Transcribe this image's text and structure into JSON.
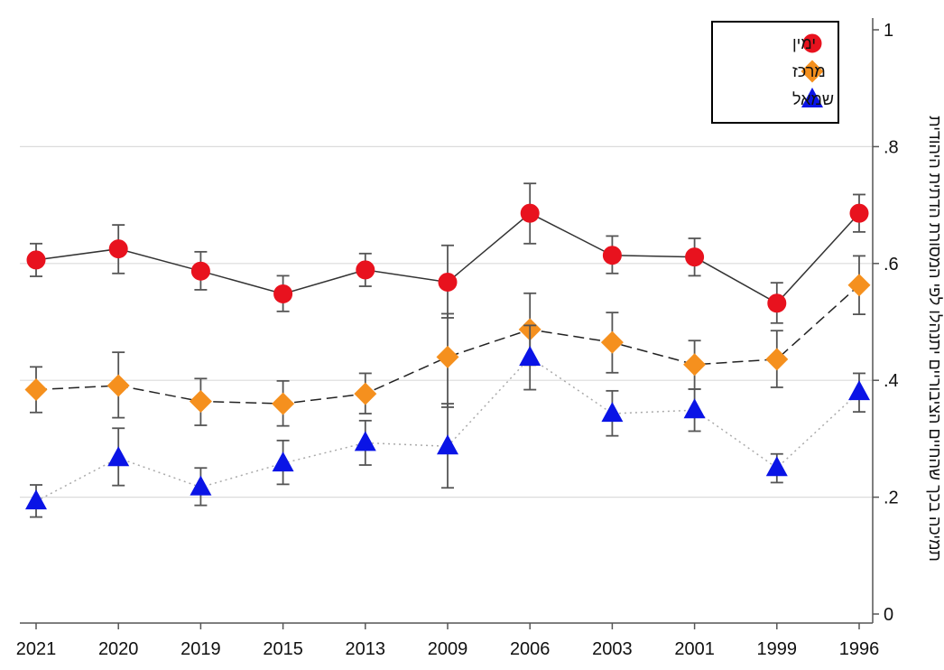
{
  "chart_data": {
    "type": "line",
    "categories": [
      "2021",
      "2020",
      "2019",
      "2015",
      "2013",
      "2009",
      "2006",
      "2003",
      "2001",
      "1999",
      "1996"
    ],
    "ylabel": "תמיכה בכך שהחיים הציבוריים יתנהלו לפי המסורת הדתית היהודית",
    "ylim": [
      0,
      1
    ],
    "yticks": [
      0,
      0.2,
      0.4,
      0.6,
      0.8,
      1
    ],
    "ytick_labels": [
      "0",
      ".2",
      ".4",
      ".6",
      ".8",
      "1"
    ],
    "grid": true,
    "legend_position": "top-right",
    "series": [
      {
        "name": "ימין",
        "marker": "circle",
        "color": "#e8121e",
        "line_style": "solid",
        "values": [
          0.606,
          0.625,
          0.587,
          0.548,
          0.589,
          0.568,
          0.686,
          0.614,
          0.611,
          0.532,
          0.686
        ],
        "ci_low": [
          0.578,
          0.583,
          0.555,
          0.518,
          0.561,
          0.507,
          0.634,
          0.583,
          0.579,
          0.498,
          0.654
        ],
        "ci_high": [
          0.634,
          0.666,
          0.62,
          0.579,
          0.617,
          0.631,
          0.737,
          0.647,
          0.643,
          0.567,
          0.718
        ]
      },
      {
        "name": "מרכז",
        "marker": "diamond",
        "color": "#f5901e",
        "line_style": "dashed",
        "values": [
          0.384,
          0.391,
          0.364,
          0.36,
          0.377,
          0.44,
          0.487,
          0.465,
          0.427,
          0.436,
          0.563
        ],
        "ci_low": [
          0.345,
          0.336,
          0.323,
          0.322,
          0.343,
          0.354,
          0.426,
          0.413,
          0.385,
          0.388,
          0.513
        ],
        "ci_high": [
          0.423,
          0.448,
          0.403,
          0.399,
          0.412,
          0.514,
          0.549,
          0.516,
          0.468,
          0.485,
          0.613
        ]
      },
      {
        "name": "שמאל",
        "marker": "triangle",
        "color": "#0a14e6",
        "line_style": "dotted",
        "values": [
          0.193,
          0.267,
          0.217,
          0.258,
          0.293,
          0.287,
          0.439,
          0.343,
          0.349,
          0.25,
          0.38
        ],
        "ci_low": [
          0.166,
          0.22,
          0.186,
          0.222,
          0.255,
          0.216,
          0.384,
          0.305,
          0.313,
          0.225,
          0.346
        ],
        "ci_high": [
          0.221,
          0.318,
          0.25,
          0.297,
          0.331,
          0.36,
          0.494,
          0.382,
          0.385,
          0.274,
          0.412
        ]
      }
    ]
  }
}
